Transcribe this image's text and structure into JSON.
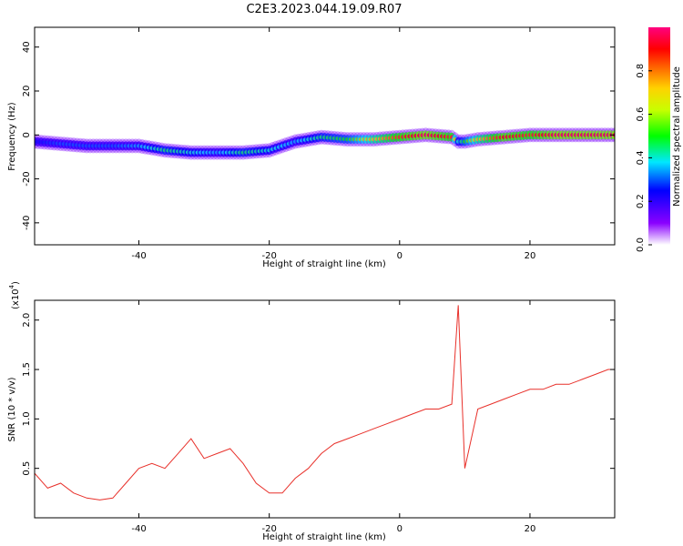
{
  "title": "C2E3.2023.044.19.09.R07",
  "chart_data": [
    {
      "type": "heatmap",
      "xlabel": "Height of straight line (km)",
      "ylabel": "Frequency (Hz)",
      "xlim": [
        -56,
        33
      ],
      "ylim": [
        -50,
        49
      ],
      "xticks": [
        -40,
        -20,
        0,
        20
      ],
      "yticks": [
        -40,
        -20,
        0,
        20,
        40
      ],
      "colorbar": {
        "label": "Normalized spectral amplitude",
        "range": [
          0.0,
          1.0
        ],
        "ticks": [
          "0.0",
          "0.2",
          "0.4",
          "0.6",
          "0.8"
        ]
      },
      "ridge": {
        "x": [
          -56,
          -52,
          -48,
          -44,
          -40,
          -36,
          -32,
          -28,
          -24,
          -20,
          -16,
          -12,
          -8,
          -4,
          0,
          4,
          8,
          9,
          10,
          12,
          16,
          20,
          24,
          28,
          33
        ],
        "freq": [
          -3,
          -4,
          -5,
          -5,
          -5,
          -7,
          -8,
          -8,
          -8,
          -7,
          -3,
          -1,
          -2,
          -2,
          -1,
          0,
          -1,
          -3,
          -3,
          -2,
          -1,
          0,
          0,
          0,
          0
        ],
        "amplitude": [
          0.25,
          0.3,
          0.3,
          0.3,
          0.35,
          0.45,
          0.4,
          0.35,
          0.45,
          0.4,
          0.35,
          0.45,
          0.5,
          0.7,
          0.85,
          0.95,
          0.85,
          0.4,
          0.5,
          0.7,
          0.9,
          0.85,
          0.95,
          0.95,
          0.95
        ]
      }
    },
    {
      "type": "line",
      "xlabel": "Height of straight line (km)",
      "ylabel": "SNR (10 * v/v)",
      "yscale_label": "(x10",
      "yscale_exp": "4",
      "xlim": [
        -56,
        33
      ],
      "ylim": [
        0.0,
        2.2
      ],
      "xticks": [
        -40,
        -20,
        0,
        20
      ],
      "yticks": [
        "0.5",
        "1.0",
        "1.5",
        "2.0"
      ],
      "series": [
        {
          "color": "#e8302a",
          "x": [
            -56,
            -54,
            -52,
            -50,
            -48,
            -46,
            -44,
            -42,
            -40,
            -38,
            -36,
            -34,
            -32,
            -30,
            -28,
            -26,
            -24,
            -22,
            -20,
            -18,
            -16,
            -14,
            -12,
            -10,
            -8,
            -6,
            -4,
            -2,
            0,
            2,
            4,
            6,
            8,
            9,
            10,
            12,
            14,
            16,
            18,
            20,
            22,
            24,
            26,
            28,
            30,
            32,
            33
          ],
          "y": [
            0.45,
            0.3,
            0.35,
            0.25,
            0.2,
            0.18,
            0.2,
            0.35,
            0.5,
            0.55,
            0.5,
            0.65,
            0.8,
            0.6,
            0.65,
            0.7,
            0.55,
            0.35,
            0.25,
            0.25,
            0.4,
            0.5,
            0.65,
            0.75,
            0.8,
            0.85,
            0.9,
            0.95,
            1.0,
            1.05,
            1.1,
            1.1,
            1.15,
            2.15,
            0.5,
            1.1,
            1.15,
            1.2,
            1.25,
            1.3,
            1.3,
            1.35,
            1.35,
            1.4,
            1.45,
            1.5,
            1.5
          ]
        }
      ]
    }
  ]
}
